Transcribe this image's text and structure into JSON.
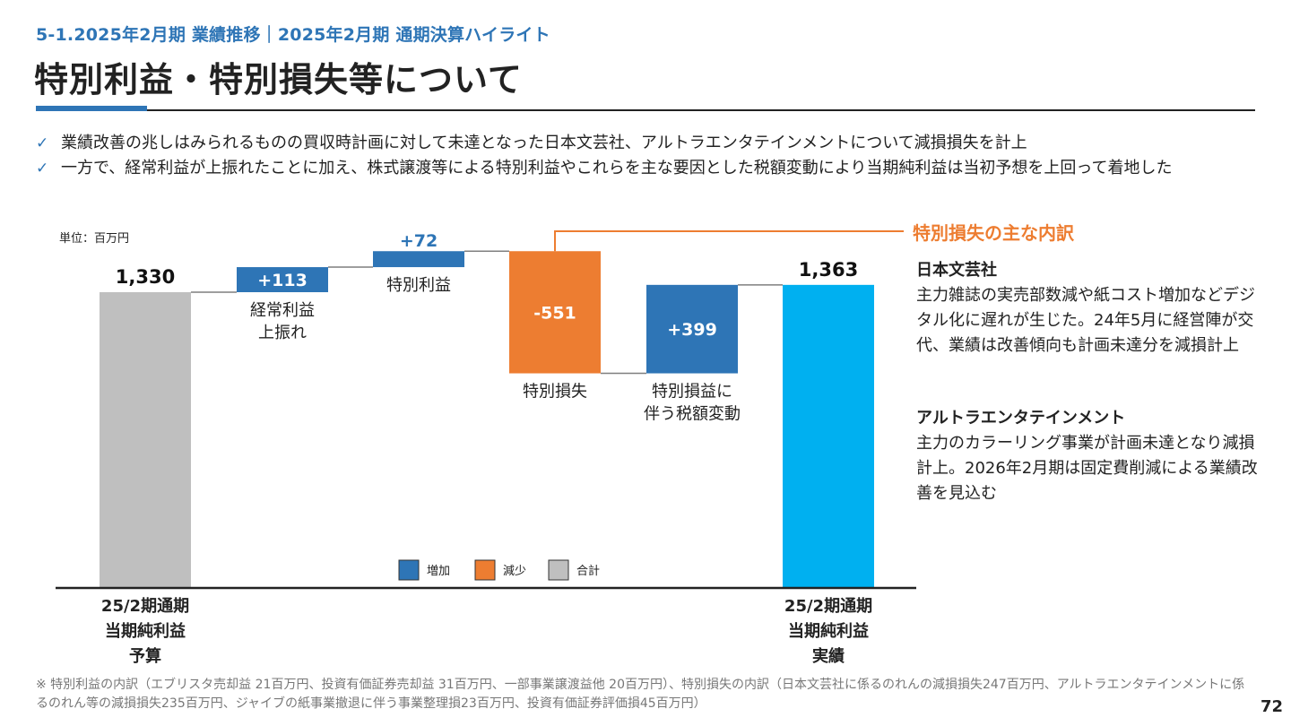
{
  "header": {
    "section_title": "5-1.2025年2月期 業績推移｜2025年2月期 通期決算ハイライト",
    "page_title": "特別利益・特別損失等について"
  },
  "bullets": [
    {
      "icon": "check-icon",
      "mark": "✓",
      "text": "業績改善の兆しはみられるものの買収時計画に対して未達となった日本文芸社、アルトラエンタテインメントについて減損損失を計上"
    },
    {
      "icon": "check-icon",
      "mark": "✓",
      "text": "一方で、経常利益が上振れたことに加え、株式譲渡等による特別利益やこれらを主な要因とした税額変動により当期純利益は当初予想を上回って着地した"
    }
  ],
  "unit_label": "単位：百万円",
  "chart_data": {
    "type": "bar",
    "subtype": "waterfall",
    "title": "",
    "unit": "百万円",
    "ylim": [
      0,
      1400
    ],
    "grid": false,
    "legend_position": "bottom-center",
    "categories": [
      "25/2期通期\n当期純利益\n予算",
      "経常利益\n上振れ",
      "特別利益",
      "特別損失",
      "特別損益に\n伴う税額変動",
      "25/2期通期\n当期純利益\n実績"
    ],
    "steps": [
      {
        "kind": "total",
        "value": 1330,
        "label": "1,330"
      },
      {
        "kind": "increase",
        "value": 113,
        "label": "+113"
      },
      {
        "kind": "increase",
        "value": 72,
        "label": "+72"
      },
      {
        "kind": "decrease",
        "value": -551,
        "label": "-551"
      },
      {
        "kind": "increase",
        "value": 399,
        "label": "+399"
      },
      {
        "kind": "total",
        "value": 1363,
        "label": "1,363"
      }
    ],
    "legend": [
      {
        "kind": "increase",
        "label": "増加"
      },
      {
        "kind": "decrease",
        "label": "減少"
      },
      {
        "kind": "total",
        "label": "合計"
      }
    ],
    "colors": {
      "increase": "#2e75b6",
      "decrease": "#ed7d31",
      "total": "#bfbfbf",
      "final_total": "#00b0f0",
      "connector": "#7f7f7f",
      "callout": "#ed7d31"
    }
  },
  "callout": {
    "title": "特別損失の主な内訳",
    "notes": [
      {
        "head": "日本文芸社",
        "body": "主力雑誌の実売部数減や紙コスト増加などデジタル化に遅れが生じた。24年5月に経営陣が交代、業績は改善傾向も計画未達分を減損計上"
      },
      {
        "head": "アルトラエンタテインメント",
        "body": "主力のカラーリング事業が計画未達となり減損計上。2026年2月期は固定費削減による業績改善を見込む"
      }
    ]
  },
  "footnote": "※ 特別利益の内訳（エブリスタ売却益 21百万円、投資有価証券売却益 31百万円、一部事業譲渡益他 20百万円）、特別損失の内訳（日本文芸社に係るのれんの減損損失247百万円、アルトラエンタテインメントに係るのれん等の減損損失235百万円、ジャイブの紙事業撤退に伴う事業整理損23百万円、投資有価証券評価損45百万円）",
  "page_number": "72"
}
